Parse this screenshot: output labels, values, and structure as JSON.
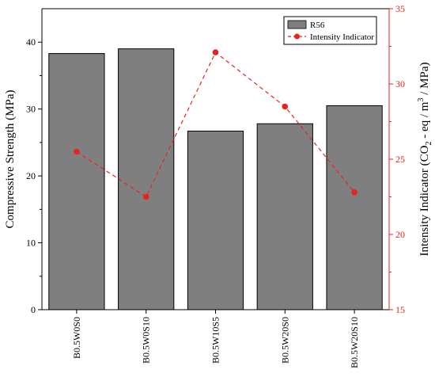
{
  "chart_data": {
    "type": "bar",
    "categories": [
      "B0.5W0S0",
      "B0.5W0S10",
      "B0.5W10S5",
      "B0.5W20S0",
      "B0.5W20S10"
    ],
    "series": [
      {
        "name": "R56",
        "type": "bar",
        "axis": "left",
        "color": "#7f7f7f",
        "values": [
          38.3,
          39.0,
          26.7,
          27.8,
          30.5
        ]
      },
      {
        "name": "Intensity Indicator",
        "type": "line",
        "axis": "right",
        "color": "#e8231d",
        "style": "dashed",
        "marker": "circle",
        "values": [
          25.5,
          22.5,
          32.1,
          28.5,
          22.8
        ]
      }
    ],
    "ylabel": "Compressive Strength (MPa)",
    "y2label": {
      "main": "Intensity Indicator (CO",
      "sub": "2",
      "mid": " - eq / m",
      "sup": "3",
      "end": " / MPa)"
    },
    "ylim": [
      0,
      45
    ],
    "yticks": [
      0,
      10,
      20,
      30,
      40
    ],
    "y2lim": [
      15,
      35
    ],
    "y2ticks": [
      15,
      20,
      25,
      30,
      35
    ],
    "grid": false,
    "legend_position": "top-right"
  }
}
